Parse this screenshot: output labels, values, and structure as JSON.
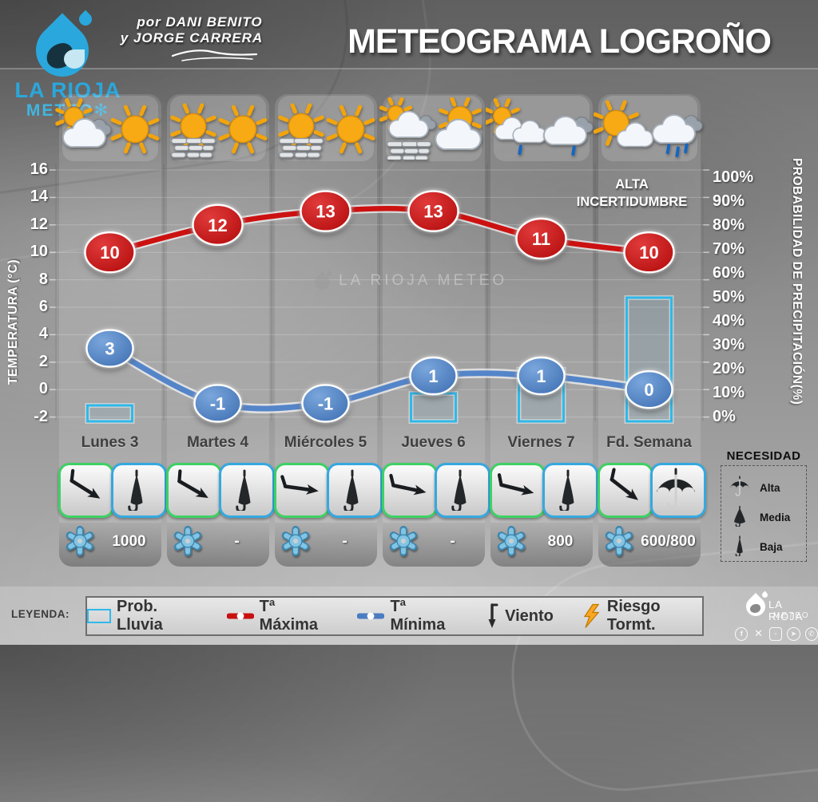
{
  "header": {
    "title": "METEOGRAMA LOGROÑO",
    "credit_line1": "por DANI BENITO",
    "credit_line2": "y JORGE CARRERA",
    "logo": {
      "line1": "LA RIOJA",
      "line2": "METEO",
      "snowflake_icon": "snowflake-icon"
    }
  },
  "colors": {
    "max_red": "#C8100F",
    "min_blue": "#4A7CC2",
    "prob_cyan": "#2FB9EA",
    "sun_yellow": "#F7AA13",
    "bolt_orange": "#F9A623",
    "logo_blue": "#2AA7DC",
    "wind_box_green": "#3ED164",
    "umbrella_box_cyan": "#35A8E0"
  },
  "annotation": {
    "line1": "ALTA",
    "line2": "INCERTIDUMBRE"
  },
  "watermark": {
    "text": "LA RIOJA METEO",
    "icon": "water-drop-icon"
  },
  "axes": {
    "left": {
      "label": "TEMPERATURA (°C)",
      "ticks": [
        16,
        14,
        12,
        10,
        8,
        6,
        4,
        2,
        0,
        -2
      ]
    },
    "right": {
      "label": "PROBABILIDAD DE PRECIPITACIÓN(%)",
      "ticks": [
        "100%",
        "90%",
        "80%",
        "70%",
        "60%",
        "50%",
        "40%",
        "30%",
        "20%",
        "10%",
        "0%"
      ]
    }
  },
  "chart_data": {
    "type": "mixed",
    "categories": [
      "Lunes 3",
      "Martes 4",
      "Miércoles 5",
      "Jueves 6",
      "Viernes 7",
      "Fd. Semana"
    ],
    "series": [
      {
        "name": "Tª Máxima",
        "type": "line",
        "color": "#C8100F",
        "values": [
          10,
          12,
          13,
          13,
          11,
          10
        ]
      },
      {
        "name": "Tª Mínima",
        "type": "line",
        "color": "#4A7CC2",
        "values": [
          3,
          -1,
          -1,
          1,
          1,
          0
        ]
      },
      {
        "name": "Prob. Lluvia",
        "type": "bar",
        "color": "#2FB9EA",
        "values": [
          5,
          0,
          0,
          10,
          20,
          50
        ]
      }
    ],
    "title": "METEOGRAMA LOGROÑO",
    "xlabel": "",
    "ylabel_left": "TEMPERATURA (°C)",
    "ylabel_right": "PROBABILIDAD DE PRECIPITACIÓN(%)",
    "ylim_left": [
      -2,
      16
    ],
    "ylim_right": [
      0,
      100
    ],
    "grid": true,
    "legend_position": "bottom",
    "annotation": "ALTA INCERTIDUMBRE"
  },
  "days": [
    {
      "label": "Lunes 3",
      "icons": [
        "sun-cloud-grey-icon",
        "sun-icon"
      ],
      "tmax": 10,
      "tmin": 3,
      "precip_prob": 5,
      "wind_angle": 32,
      "umbrella": "closed",
      "snow_level": "1000"
    },
    {
      "label": "Martes 4",
      "icons": [
        "sun-fog-icon",
        "sun-icon"
      ],
      "tmax": 12,
      "tmin": -1,
      "precip_prob": 0,
      "wind_angle": 30,
      "umbrella": "closed",
      "snow_level": "-"
    },
    {
      "label": "Miércoles 5",
      "icons": [
        "sun-fog-icon",
        "sun-icon"
      ],
      "tmax": 13,
      "tmin": -1,
      "precip_prob": 0,
      "wind_angle": 8,
      "umbrella": "closed",
      "snow_level": "-"
    },
    {
      "label": "Jueves 6",
      "icons": [
        "cloud-fog-sun-icon",
        "sun-behind-cloud-icon"
      ],
      "tmax": 13,
      "tmin": 1,
      "precip_prob": 10,
      "wind_angle": 12,
      "umbrella": "closed",
      "snow_level": "-"
    },
    {
      "label": "Viernes 7",
      "icons": [
        "sun-cloud-drizzle-icon",
        "cloud-drizzle-icon"
      ],
      "tmax": 11,
      "tmin": 1,
      "precip_prob": 20,
      "wind_angle": 14,
      "umbrella": "closed",
      "snow_level": "800"
    },
    {
      "label": "Fd. Semana",
      "icons": [
        "sun-cloud-icon",
        "cloud-rain-icon"
      ],
      "tmax": 10,
      "tmin": 0,
      "precip_prob": 50,
      "wind_angle": 38,
      "umbrella": "open",
      "snow_level": "600/800"
    }
  ],
  "legend": {
    "label": "LEYENDA:",
    "items": [
      {
        "icon": "prob-rect-icon",
        "text": "Prob. Lluvia"
      },
      {
        "icon": "red-line-icon",
        "text": "Tª Máxima"
      },
      {
        "icon": "blue-line-icon",
        "text": "Tª Mínima"
      },
      {
        "icon": "wind-arrow-icon",
        "text": "Viento"
      },
      {
        "icon": "lightning-icon",
        "text": "Riesgo Tormt."
      }
    ]
  },
  "necesidad": {
    "title": "NECESIDAD",
    "items": [
      {
        "icon": "umbrella-open-icon",
        "text": "Alta"
      },
      {
        "icon": "umbrella-half-icon",
        "text": "Media"
      },
      {
        "icon": "umbrella-closed-icon",
        "text": "Baja"
      }
    ]
  },
  "footer": {
    "logo_line1": "LA RIOJA",
    "logo_line2": "METEO",
    "social": [
      "facebook",
      "x",
      "instagram",
      "telegram",
      "whatsapp"
    ]
  }
}
